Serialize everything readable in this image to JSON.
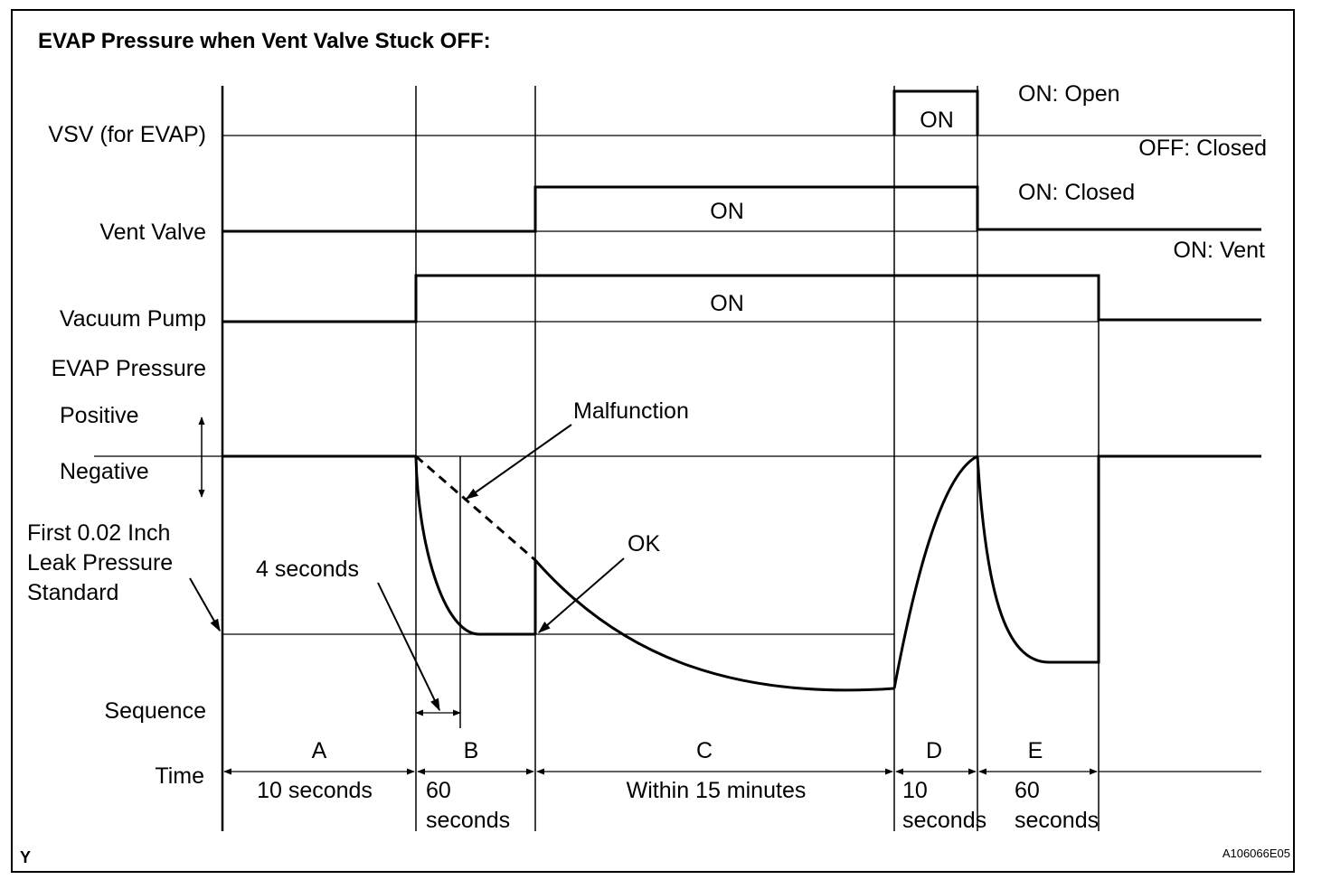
{
  "title": "EVAP Pressure when Vent Valve Stuck OFF:",
  "rows": {
    "vsv": "VSV (for EVAP)",
    "vent_valve": "Vent Valve",
    "vacuum_pump": "Vacuum Pump",
    "evap_pressure": "EVAP Pressure",
    "positive": "Positive",
    "negative": "Negative",
    "leak_std_1": "First 0.02 Inch",
    "leak_std_2": "Leak Pressure",
    "leak_std_3": "Standard",
    "sequence": "Sequence",
    "time": "Time"
  },
  "states": {
    "vsv_on": "ON",
    "vsv_on_desc": "ON: Open",
    "vsv_off_desc": "OFF: Closed",
    "vent_on": "ON",
    "vent_on_desc": "ON: Closed",
    "vent_off_desc": "ON: Vent",
    "pump_on": "ON"
  },
  "annotations": {
    "malfunction": "Malfunction",
    "ok": "OK",
    "four_seconds": "4 seconds"
  },
  "sequence": [
    {
      "letter": "A",
      "time_1": "10 seconds",
      "time_2": ""
    },
    {
      "letter": "B",
      "time_1": "60",
      "time_2": "seconds"
    },
    {
      "letter": "C",
      "time_1": "Within 15 minutes",
      "time_2": ""
    },
    {
      "letter": "D",
      "time_1": "10",
      "time_2": "seconds"
    },
    {
      "letter": "E",
      "time_1": "60",
      "time_2": "seconds"
    }
  ],
  "footer": {
    "left_mark": "Y",
    "figure_id": "A106066E05"
  }
}
